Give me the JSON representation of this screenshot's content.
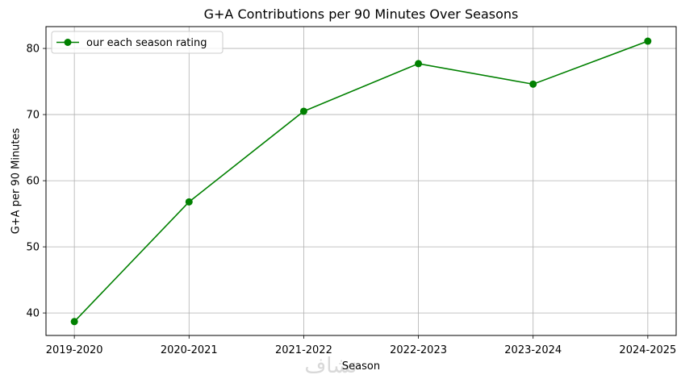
{
  "chart_data": {
    "type": "line",
    "title": "G+A Contributions per 90 Minutes Over Seasons",
    "xlabel": "Season",
    "ylabel": "G+A per 90 Minutes",
    "categories": [
      "2019-2020",
      "2020-2021",
      "2021-2022",
      "2022-2023",
      "2023-2024",
      "2024-2025"
    ],
    "series": [
      {
        "name": "our each season rating",
        "values": [
          38.7,
          56.8,
          70.5,
          77.7,
          74.6,
          81.1
        ],
        "color": "#008000",
        "marker": "circle"
      }
    ],
    "ylim": [
      36.6,
      83.3
    ],
    "yticks": [
      40,
      50,
      60,
      70,
      80
    ],
    "grid": true,
    "legend_position": "upper-left"
  },
  "watermark_text": "نشاف"
}
